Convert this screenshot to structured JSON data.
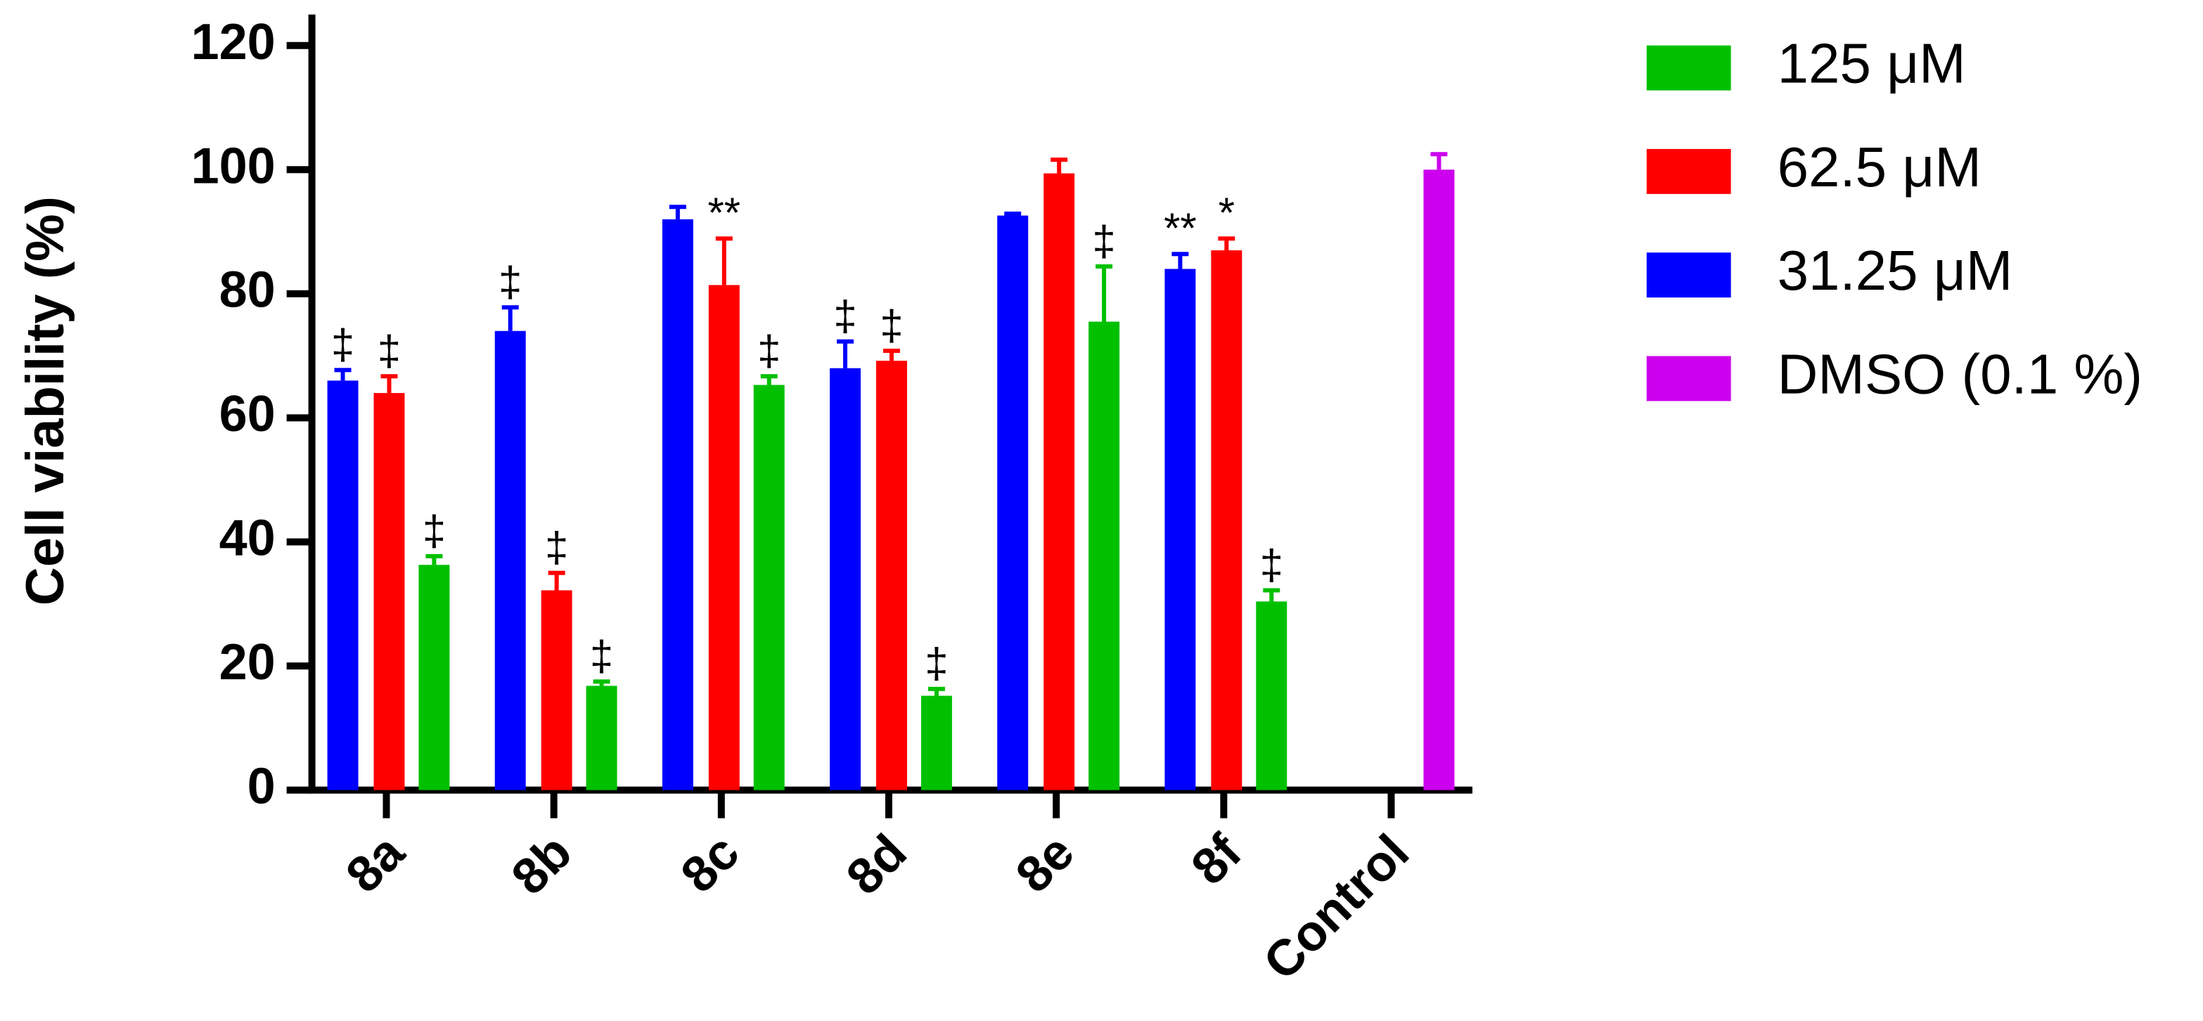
{
  "chart_data": {
    "type": "bar",
    "y_label": "Cell viability (%)",
    "categories": [
      "8a",
      "8b",
      "8c",
      "8d",
      "8e",
      "8f",
      "Control"
    ],
    "series": [
      {
        "name": "125 μM",
        "color": "#00c000",
        "values": [
          36.3,
          16.8,
          65.3,
          15.2,
          75.5,
          30.4,
          null
        ],
        "errors": [
          1.4,
          0.7,
          1.4,
          1.1,
          8.9,
          1.8,
          null
        ],
        "annotations": [
          "‡",
          "‡",
          "‡",
          "‡",
          "‡",
          "‡",
          null
        ]
      },
      {
        "name": "62.5 μM",
        "color": "#ff0000",
        "values": [
          64,
          32.2,
          81.4,
          69.2,
          99.4,
          87,
          null
        ],
        "errors": [
          2.7,
          2.8,
          7.5,
          1.6,
          2.2,
          1.9,
          null
        ],
        "annotations": [
          "‡",
          "‡",
          "**",
          "‡",
          null,
          "*",
          null
        ]
      },
      {
        "name": "31.25 μM",
        "color": "#0000ff",
        "values": [
          66,
          74,
          92,
          68,
          92.6,
          84,
          null
        ],
        "errors": [
          1.7,
          3.8,
          2.0,
          4.3,
          0.3,
          2.4,
          null
        ],
        "annotations": [
          "‡",
          "‡",
          null,
          "‡",
          null,
          "**",
          null
        ]
      },
      {
        "name": "DMSO (0.1 %)",
        "color": "#cc00ee",
        "values": [
          null,
          null,
          null,
          null,
          null,
          null,
          100
        ],
        "errors": [
          null,
          null,
          null,
          null,
          null,
          null,
          2.5
        ],
        "annotations": [
          null,
          null,
          null,
          null,
          null,
          null,
          null
        ]
      }
    ],
    "ylim": [
      0,
      125
    ],
    "yticks": [
      0,
      20,
      40,
      60,
      80,
      100,
      120
    ],
    "legend": "right"
  }
}
